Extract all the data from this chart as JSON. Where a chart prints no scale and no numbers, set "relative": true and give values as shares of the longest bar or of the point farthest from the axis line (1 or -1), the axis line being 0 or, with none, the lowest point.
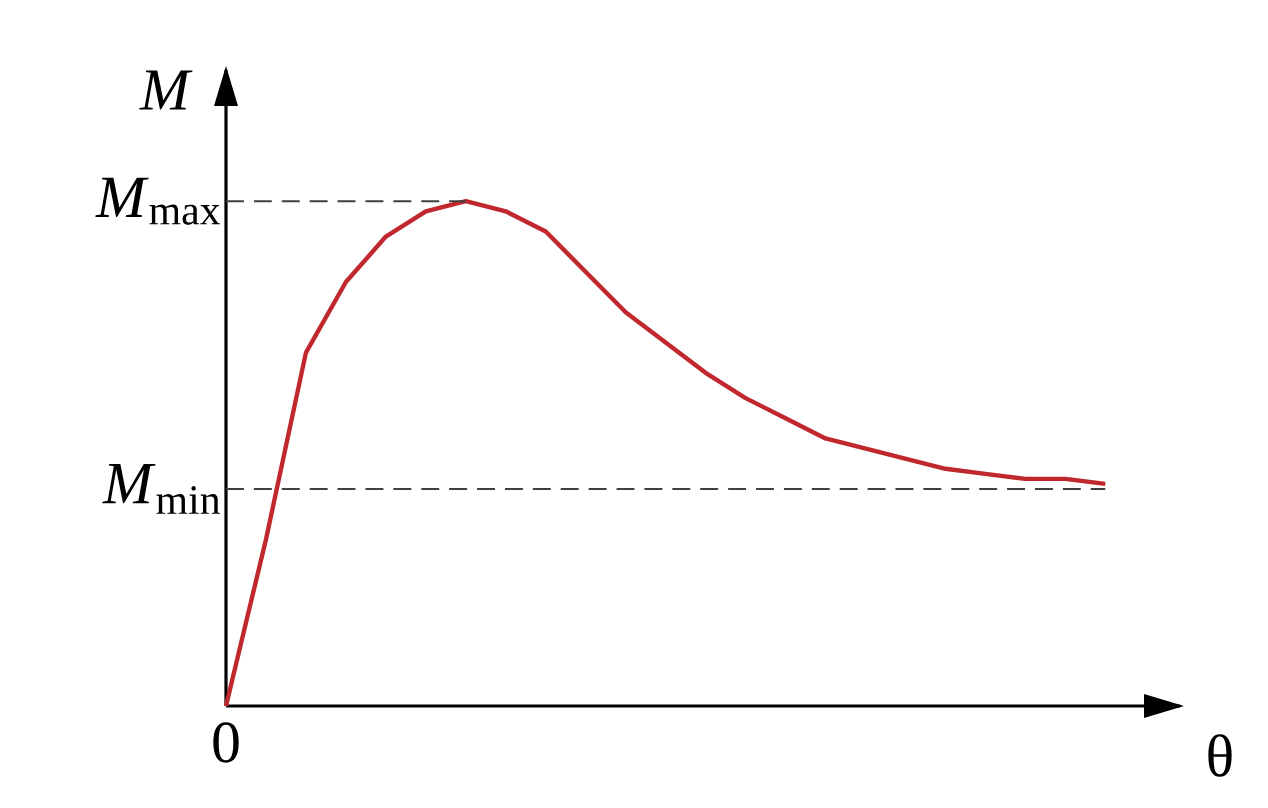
{
  "chart_data": {
    "type": "line",
    "relative": true,
    "xlabel": "θ",
    "ylabel": "M",
    "annotations": [
      "0"
    ],
    "marker": "none",
    "line_style": "solid",
    "categories": [
      null,
      null,
      null,
      null,
      null,
      null,
      null,
      null,
      null,
      null,
      null,
      null,
      null,
      null,
      null,
      null,
      null,
      null,
      null,
      null,
      null,
      null,
      null
    ],
    "series": [
      {
        "color": "#c0282d",
        "values": [
          0,
          0.33,
          0.7,
          0.84,
          0.93,
          0.98,
          1,
          0.98,
          0.94,
          0.86,
          0.78,
          0.72,
          0.66,
          0.61,
          0.57,
          0.53,
          0.51,
          0.49,
          0.47,
          0.46,
          0.45,
          0.45,
          0.44
        ]
      }
    ],
    "ref_lines": [
      {
        "axis": "y",
        "value": 1,
        "label": "*M*$_{max}$",
        "color": "#404040",
        "line_style": "dashed"
      },
      {
        "axis": "y",
        "value": 0.43,
        "label": "*M*$_{min}$",
        "color": "#404040",
        "line_style": "dashed"
      }
    ]
  }
}
